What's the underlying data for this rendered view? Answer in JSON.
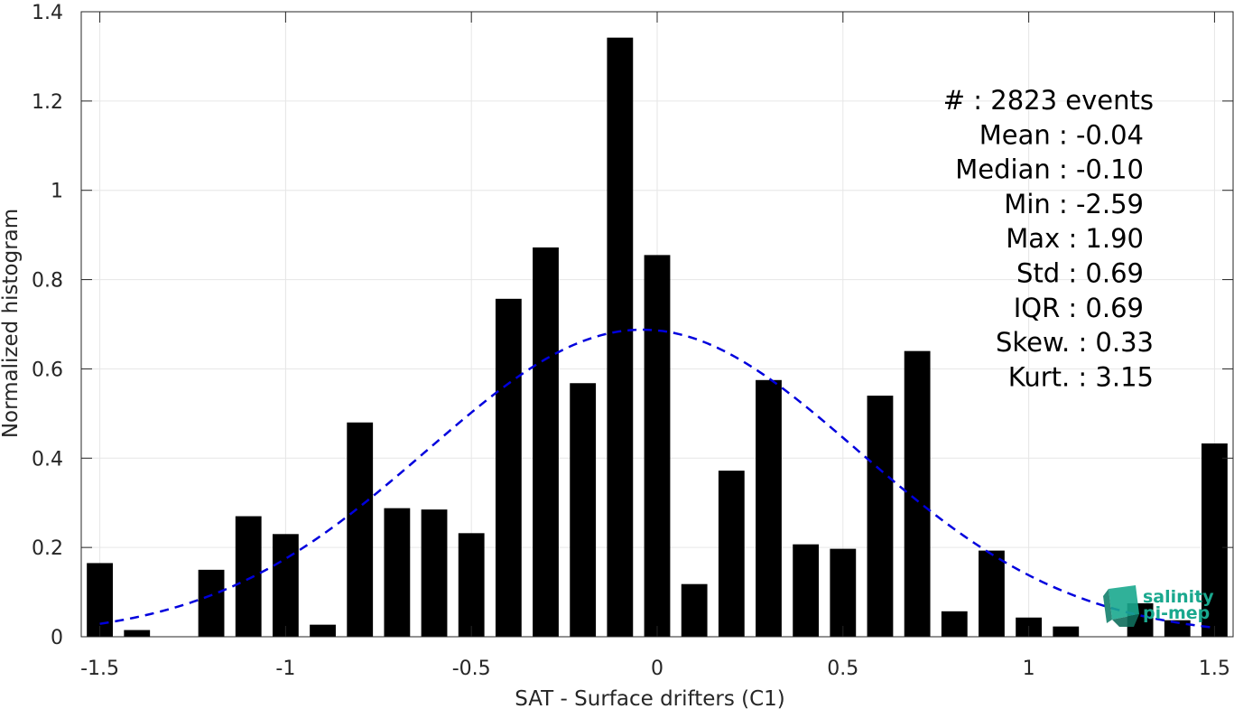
{
  "chart_data": {
    "type": "bar",
    "xlabel": "SAT - Surface drifters (C1)",
    "ylabel": "Normalized histogram",
    "xlim": [
      -1.55,
      1.55
    ],
    "ylim": [
      0,
      1.4
    ],
    "xticks": [
      -1.5,
      -1,
      -0.5,
      0,
      0.5,
      1,
      1.5
    ],
    "xtick_labels": [
      "-1.5",
      "-1",
      "-0.5",
      "0",
      "0.5",
      "1",
      "1.5"
    ],
    "yticks": [
      0,
      0.2,
      0.4,
      0.6,
      0.8,
      1,
      1.2,
      1.4
    ],
    "ytick_labels": [
      "0",
      "0.2",
      "0.4",
      "0.6",
      "0.8",
      "1",
      "1.2",
      "1.4"
    ],
    "grid": true,
    "bar_color": "#000000",
    "bar_width": 0.07,
    "series": [
      {
        "x": [
          -1.5,
          -1.4,
          -1.3,
          -1.2,
          -1.1,
          -1.0,
          -0.9,
          -0.8,
          -0.7,
          -0.6,
          -0.5,
          -0.4,
          -0.3,
          -0.2,
          -0.1,
          0.0,
          0.1,
          0.2,
          0.3,
          0.4,
          0.5,
          0.6,
          0.7,
          0.8,
          0.9,
          1.0,
          1.1,
          1.2,
          1.3,
          1.4,
          1.5
        ],
        "values": [
          0.165,
          0.015,
          0.0,
          0.15,
          0.27,
          0.23,
          0.027,
          0.48,
          0.288,
          0.285,
          0.232,
          0.757,
          0.872,
          0.568,
          1.342,
          0.855,
          0.118,
          0.372,
          0.575,
          0.207,
          0.197,
          0.54,
          0.64,
          0.057,
          0.193,
          0.043,
          0.023,
          0.0,
          0.075,
          0.037,
          0.433
        ]
      }
    ],
    "fit_curve": {
      "style": "dashed",
      "color": "#0000dd",
      "mean": -0.04,
      "std": 0.58,
      "x_range": [
        -1.5,
        1.5
      ]
    },
    "annotations": [
      "#  : 2823 events",
      "Mean : -0.04",
      "Median : -0.10",
      "Min : -2.59",
      "Max : 1.90",
      "Std : 0.69",
      "IQR : 0.69",
      "Skew. : 0.33",
      "Kurt. : 3.15"
    ]
  },
  "logo": {
    "line1": "salinity",
    "line2": "pi-mep",
    "color": "#1aa88e"
  }
}
